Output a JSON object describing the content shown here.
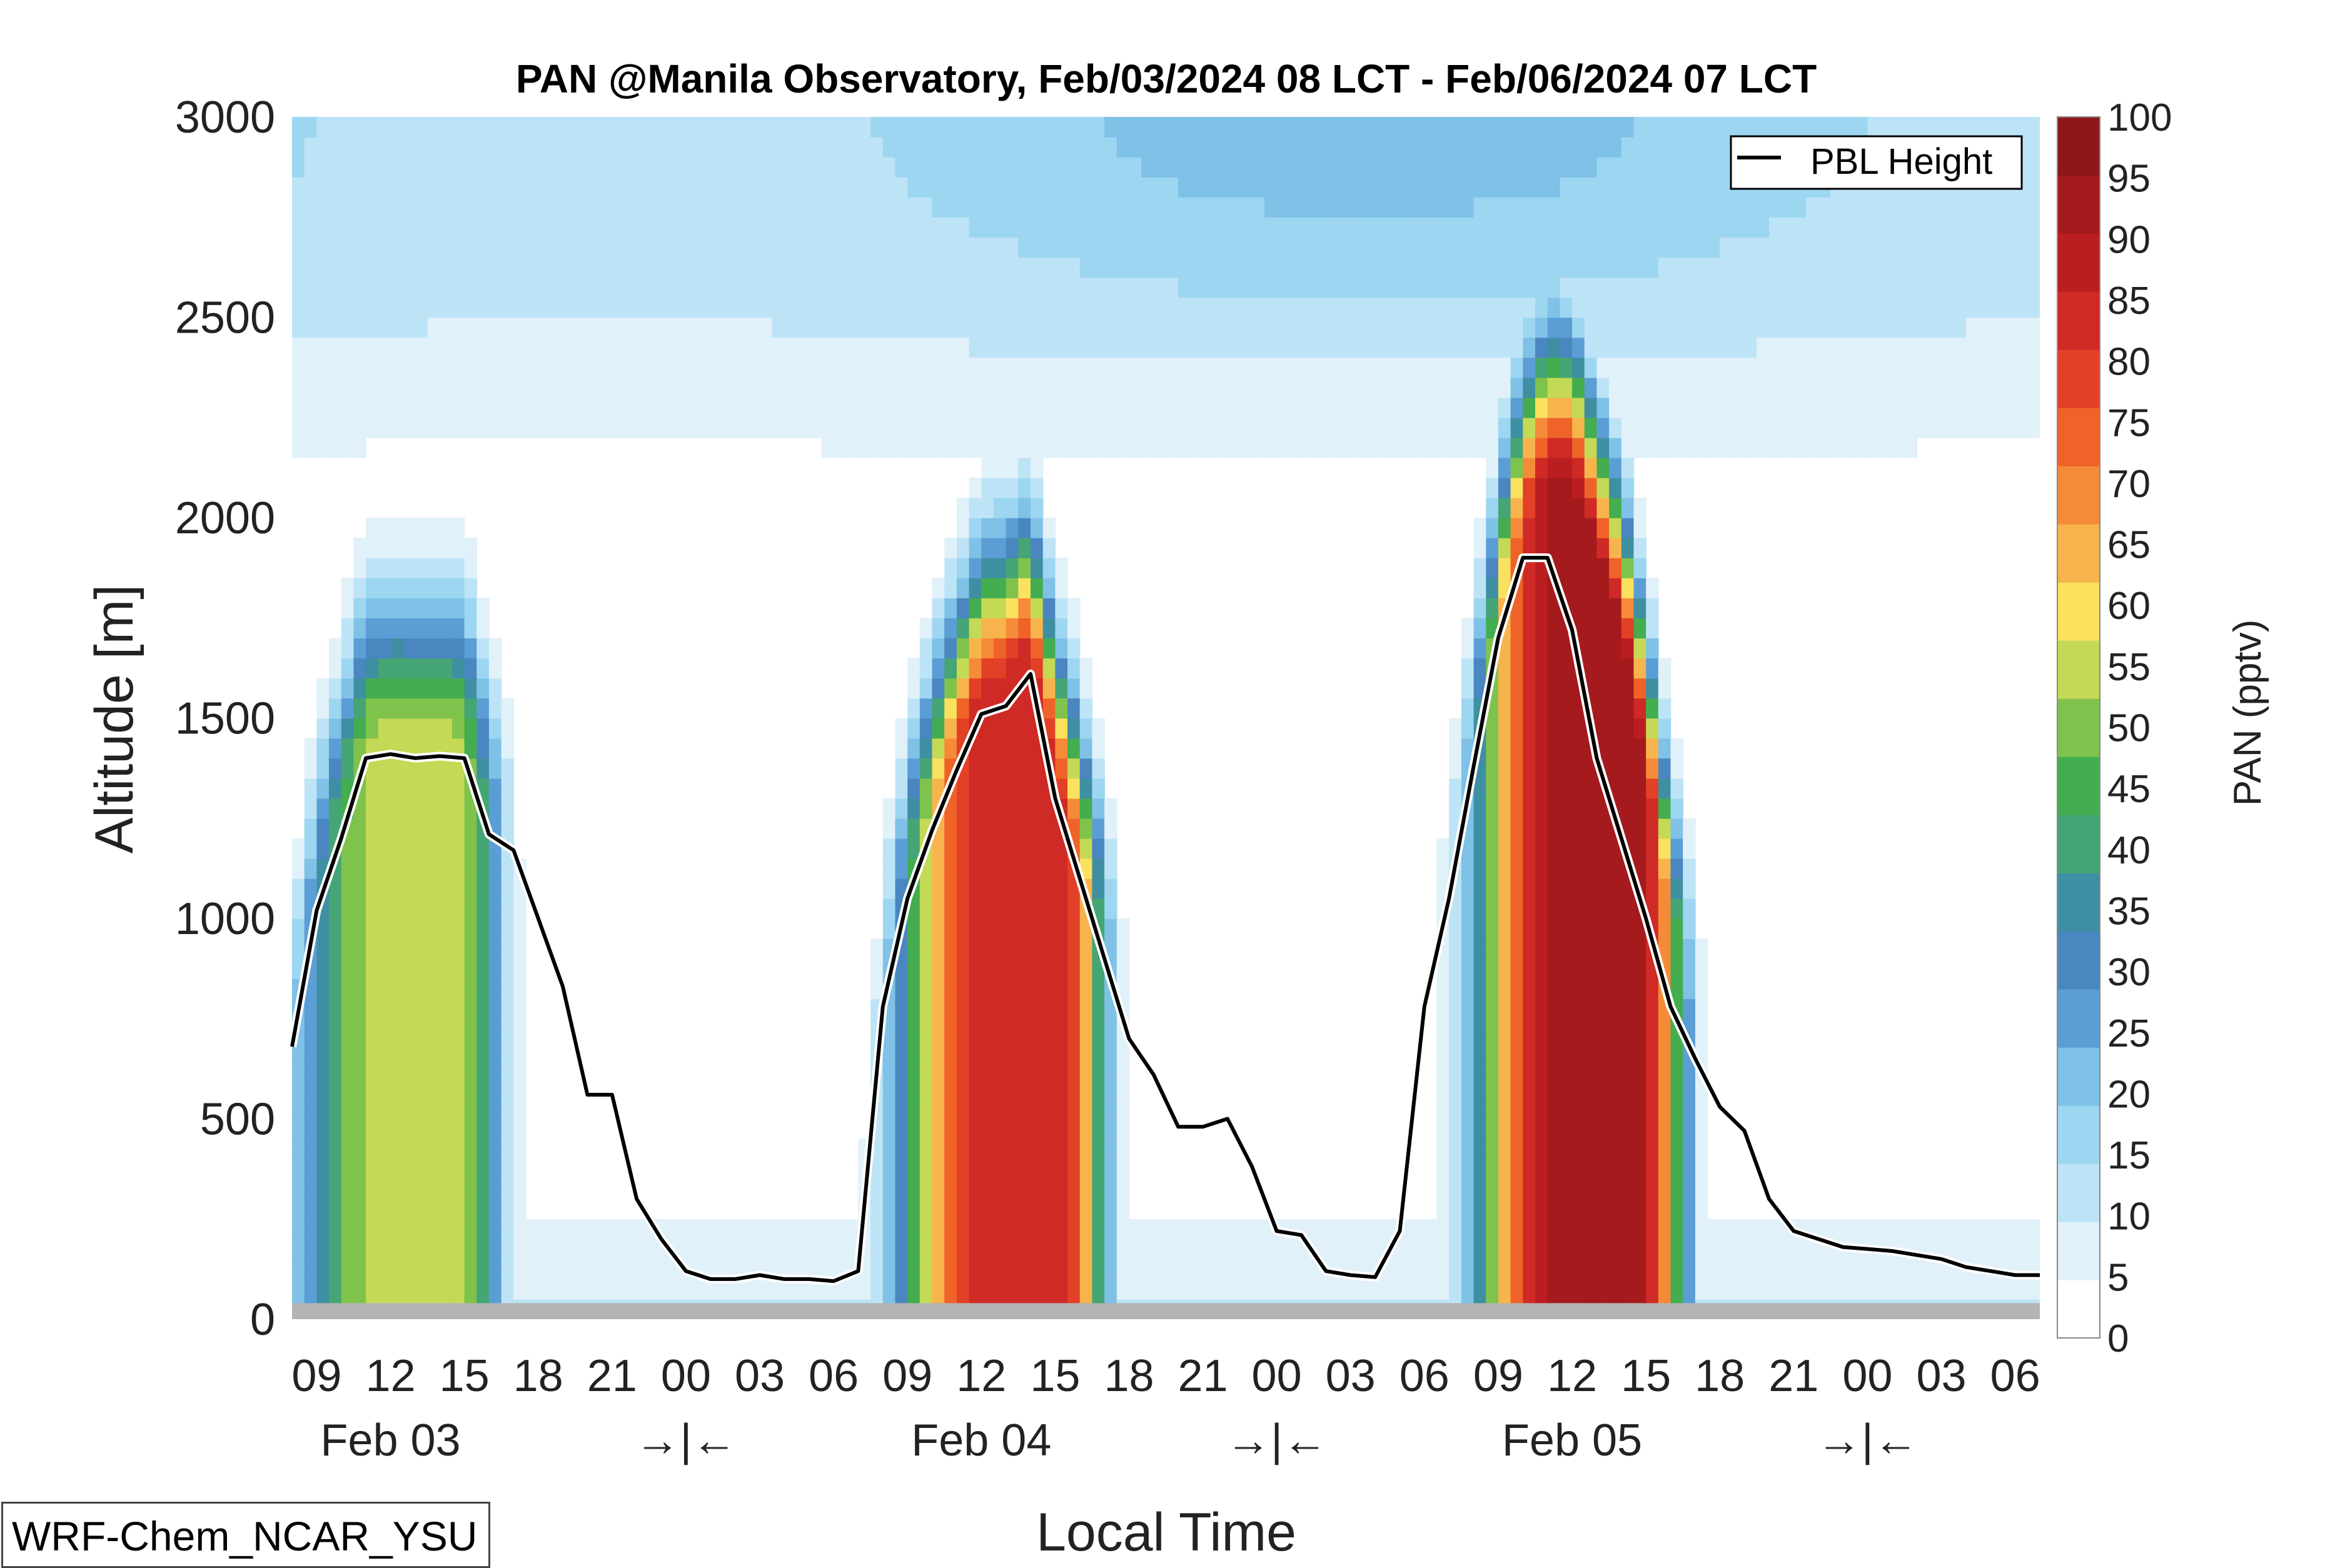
{
  "chart_data": {
    "type": "heatmap",
    "title": "PAN @Manila Observatory, Feb/03/2024 08 LCT - Feb/06/2024 07 LCT",
    "xlabel": "Local Time",
    "ylabel": "Altitude [m]",
    "colorbar_label": "PAN (pptv)",
    "ylim": [
      0,
      3000
    ],
    "yticks": [
      0,
      500,
      1000,
      1500,
      2000,
      2500,
      3000
    ],
    "xlim": [
      8,
      79
    ],
    "x_unit": "hours since Feb 03 00 LCT",
    "xtick_hours": [
      9,
      12,
      15,
      18,
      21,
      24,
      27,
      30,
      33,
      36,
      39,
      42,
      45,
      48,
      51,
      54,
      57,
      60,
      63,
      66,
      69,
      72,
      75,
      78
    ],
    "xtick_labels": [
      "09",
      "12",
      "15",
      "18",
      "21",
      "00",
      "03",
      "06",
      "09",
      "12",
      "15",
      "18",
      "21",
      "00",
      "03",
      "06",
      "09",
      "12",
      "15",
      "18",
      "21",
      "00",
      "03",
      "06"
    ],
    "day_labels": [
      {
        "hour": 12,
        "text": "Feb 03"
      },
      {
        "hour": 36,
        "text": "Feb 04"
      },
      {
        "hour": 60,
        "text": "Feb 05"
      }
    ],
    "midnight_markers": [
      {
        "hour": 24,
        "text": "→|←"
      },
      {
        "hour": 48,
        "text": "→|←"
      },
      {
        "hour": 72,
        "text": "→|←"
      }
    ],
    "color_levels": [
      0,
      5,
      10,
      15,
      20,
      25,
      30,
      35,
      40,
      45,
      50,
      55,
      60,
      65,
      70,
      75,
      80,
      85,
      90,
      95,
      100
    ],
    "colorbar_ticks": [
      0,
      5,
      10,
      15,
      20,
      25,
      30,
      35,
      40,
      45,
      50,
      55,
      60,
      65,
      70,
      75,
      80,
      85,
      90,
      95,
      100
    ],
    "colors": [
      "#ffffff",
      "#e1f1fa",
      "#bde4f6",
      "#9dd6f1",
      "#7fc1e7",
      "#5b9ed6",
      "#4a86c0",
      "#3f8fa3",
      "#45a574",
      "#43ad4f",
      "#7fc34c",
      "#c4d955",
      "#fae15e",
      "#f8b44c",
      "#f58b38",
      "#ef6328",
      "#e24027",
      "#cf2a25",
      "#bb1e20",
      "#a51a1d",
      "#8e1719"
    ],
    "ground_level_m": 40,
    "pbl_height": {
      "name": "PBL Height",
      "x": [
        8,
        9,
        10,
        11,
        12,
        13,
        14,
        15,
        16,
        17,
        18,
        19,
        20,
        21,
        22,
        23,
        24,
        25,
        26,
        27,
        28,
        29,
        30,
        31,
        32,
        33,
        34,
        35,
        36,
        37,
        38,
        39,
        40,
        41,
        42,
        43,
        44,
        45,
        46,
        47,
        48,
        49,
        50,
        51,
        52,
        53,
        54,
        55,
        56,
        57,
        58,
        59,
        60,
        61,
        62,
        63,
        64,
        65,
        66,
        67,
        68,
        69,
        70,
        71,
        72,
        73,
        74,
        75,
        76,
        77,
        78,
        79
      ],
      "y": [
        680,
        1020,
        1200,
        1400,
        1410,
        1400,
        1405,
        1400,
        1210,
        1170,
        1000,
        830,
        560,
        560,
        300,
        200,
        120,
        100,
        100,
        110,
        100,
        100,
        95,
        120,
        780,
        1050,
        1220,
        1370,
        1510,
        1530,
        1610,
        1300,
        1100,
        900,
        700,
        610,
        480,
        480,
        500,
        380,
        220,
        210,
        120,
        110,
        105,
        220,
        780,
        1050,
        1380,
        1700,
        1900,
        1900,
        1720,
        1400,
        1200,
        1000,
        780,
        650,
        530,
        470,
        300,
        220,
        200,
        180,
        175,
        170,
        160,
        150,
        130,
        120,
        110,
        110
      ]
    },
    "plumes": [
      {
        "center_hour": 13.5,
        "surface_ppt": 58,
        "peak_top_m": 1900,
        "note": "Feb 03 daytime"
      },
      {
        "center_hour": 38,
        "surface_ppt": 90,
        "peak_top_m": 1900,
        "note": "Feb 04 daytime"
      },
      {
        "center_hour": 61.5,
        "surface_ppt": 100,
        "peak_top_m": 2350,
        "note": "Feb 05 daytime"
      }
    ],
    "legend": {
      "label": "PBL Height",
      "position": "top-right"
    },
    "grid": false
  },
  "model_label": "WRF-Chem_NCAR_YSU"
}
